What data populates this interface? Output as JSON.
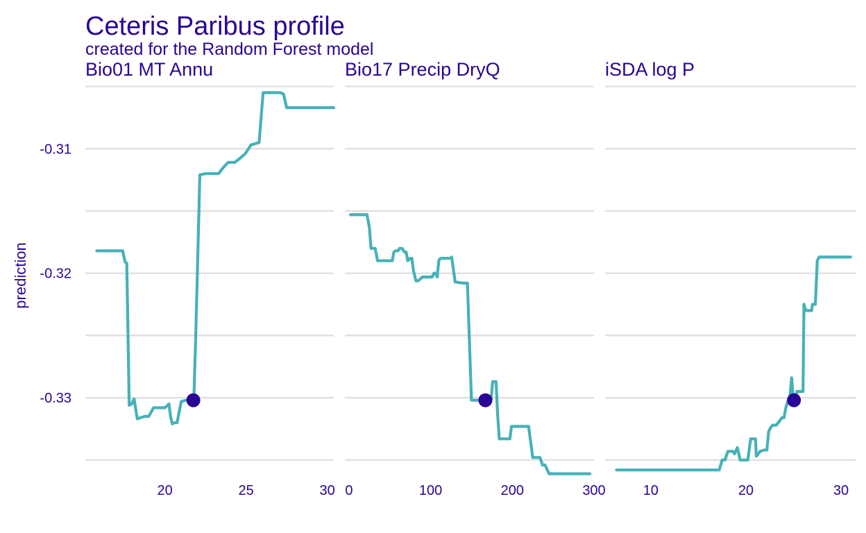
{
  "chart_data": {
    "type": "line",
    "title": "Ceteris Paribus profile",
    "subtitle": "created for the Random Forest model",
    "ylabel": "prediction",
    "xlabel": "",
    "ylim": [
      -0.3354,
      -0.3043
    ],
    "yticks": [
      -0.31,
      -0.32,
      -0.33
    ],
    "ytick_labels": [
      "-0.31",
      "-0.32",
      "-0.33"
    ],
    "grid": true,
    "line_color": "#46b1b8",
    "point_color": "#2a0494",
    "text_color": "#2a0494",
    "panels": [
      {
        "name": "Bio01  MT  Annu",
        "xlim": [
          15.1,
          30.4
        ],
        "xticks": [
          20,
          25,
          30
        ],
        "xtick_labels": [
          "20",
          "25",
          "30"
        ],
        "x": [
          15.8,
          17.4,
          17.55,
          17.65,
          17.8,
          17.95,
          18.1,
          18.3,
          18.5,
          18.75,
          19.0,
          19.3,
          19.6,
          20.0,
          20.25,
          20.35,
          20.45,
          20.6,
          20.75,
          21.0,
          21.3,
          21.55,
          21.65,
          21.78,
          21.9,
          22.15,
          22.5,
          22.8,
          23.3,
          23.6,
          23.9,
          24.3,
          24.6,
          24.95,
          25.3,
          25.8,
          26.05,
          26.4,
          26.8,
          27.1,
          27.3,
          27.5,
          27.7,
          28.0,
          28.5,
          29.0,
          29.5,
          30.0,
          30.4
        ],
        "y": [
          -0.3182,
          -0.3182,
          -0.3191,
          -0.3192,
          -0.3306,
          -0.3305,
          -0.3301,
          -0.3317,
          -0.3316,
          -0.3315,
          -0.3315,
          -0.3308,
          -0.3308,
          -0.3308,
          -0.3305,
          -0.3315,
          -0.3321,
          -0.332,
          -0.332,
          -0.3303,
          -0.3302,
          -0.3302,
          -0.3302,
          -0.3302,
          -0.325,
          -0.3121,
          -0.312,
          -0.312,
          -0.312,
          -0.3115,
          -0.3111,
          -0.3111,
          -0.3108,
          -0.3104,
          -0.3097,
          -0.3095,
          -0.3055,
          -0.3055,
          -0.3055,
          -0.3055,
          -0.3056,
          -0.3067,
          -0.3067,
          -0.3067,
          -0.3067,
          -0.3067,
          -0.3067,
          -0.3067,
          -0.3067
        ],
        "point": {
          "x": 21.75,
          "y": -0.3302
        }
      },
      {
        "name": "Bio17  Precip  DryQ",
        "xlim": [
          -5,
          300
        ],
        "xticks": [
          0,
          100,
          200,
          300
        ],
        "xtick_labels": [
          "0",
          "100",
          "200",
          "300"
        ],
        "x": [
          2,
          15,
          22,
          25,
          27,
          30,
          32,
          35,
          40,
          45,
          50,
          53,
          55,
          57,
          60,
          62,
          65,
          68,
          70,
          72,
          75,
          77,
          79,
          82,
          85,
          90,
          95,
          100,
          102,
          104,
          106,
          108,
          110,
          112,
          115,
          125,
          125.5,
          126,
          130,
          140,
          145,
          150,
          155,
          165,
          170,
          172,
          174,
          176,
          180,
          182,
          184,
          190,
          195,
          197,
          199,
          210,
          212,
          215,
          220,
          225,
          230,
          234,
          237,
          240,
          245,
          250,
          255,
          260,
          265,
          270,
          280,
          290,
          295
        ],
        "y": [
          -0.3153,
          -0.3153,
          -0.3153,
          -0.3163,
          -0.318,
          -0.318,
          -0.318,
          -0.319,
          -0.319,
          -0.319,
          -0.319,
          -0.319,
          -0.3183,
          -0.3182,
          -0.3182,
          -0.318,
          -0.318,
          -0.3183,
          -0.3183,
          -0.319,
          -0.3188,
          -0.3188,
          -0.3198,
          -0.3206,
          -0.3206,
          -0.3203,
          -0.3203,
          -0.3203,
          -0.3203,
          -0.32,
          -0.32,
          -0.3203,
          -0.319,
          -0.3188,
          -0.3188,
          -0.3188,
          -0.3187,
          -0.3188,
          -0.3207,
          -0.3208,
          -0.3208,
          -0.3302,
          -0.3302,
          -0.3302,
          -0.3302,
          -0.3305,
          -0.3302,
          -0.3287,
          -0.3287,
          -0.3313,
          -0.3333,
          -0.3333,
          -0.3333,
          -0.3333,
          -0.3323,
          -0.3323,
          -0.3323,
          -0.3323,
          -0.3323,
          -0.3348,
          -0.3348,
          -0.3348,
          -0.3354,
          -0.3354,
          -0.3361,
          -0.3361,
          -0.3361,
          -0.3361,
          -0.3361,
          -0.3361,
          -0.3361,
          -0.3361,
          -0.3361
        ],
        "point": {
          "x": 167,
          "y": -0.3302
        }
      },
      {
        "name": "iSDA  log  P",
        "xlim": [
          5.2,
          31.6
        ],
        "xticks": [
          10,
          20,
          30
        ],
        "xtick_labels": [
          "10",
          "20",
          "30"
        ],
        "x": [
          6.4,
          10,
          15,
          17.2,
          17.5,
          17.8,
          18.1,
          18.4,
          18.6,
          18.8,
          19.1,
          19.4,
          19.6,
          19.9,
          20.2,
          20.5,
          20.8,
          21.0,
          21.1,
          21.5,
          21.9,
          22.2,
          22.4,
          22.6,
          22.8,
          23.2,
          23.5,
          23.8,
          24.0,
          24.2,
          24.4,
          24.6,
          24.8,
          25.0,
          25.2,
          25.35,
          25.5,
          25.7,
          25.85,
          26.0,
          26.1,
          26.3,
          26.5,
          26.9,
          27.0,
          27.3,
          27.5,
          27.7,
          28.0,
          28.5,
          29.5,
          31.0
        ],
        "y": [
          -0.3358,
          -0.3358,
          -0.3358,
          -0.3358,
          -0.335,
          -0.335,
          -0.3343,
          -0.3343,
          -0.3343,
          -0.3345,
          -0.334,
          -0.335,
          -0.335,
          -0.335,
          -0.335,
          -0.3333,
          -0.3333,
          -0.3333,
          -0.3347,
          -0.3343,
          -0.3342,
          -0.3342,
          -0.3327,
          -0.3324,
          -0.3322,
          -0.3322,
          -0.3319,
          -0.3316,
          -0.3316,
          -0.3308,
          -0.3303,
          -0.3302,
          -0.3284,
          -0.3302,
          -0.3302,
          -0.3295,
          -0.3295,
          -0.3295,
          -0.3295,
          -0.3295,
          -0.3225,
          -0.323,
          -0.323,
          -0.323,
          -0.3225,
          -0.3225,
          -0.319,
          -0.3187,
          -0.3187,
          -0.3187,
          -0.3187,
          -0.3187
        ],
        "point": {
          "x": 25.05,
          "y": -0.3302
        }
      }
    ]
  }
}
